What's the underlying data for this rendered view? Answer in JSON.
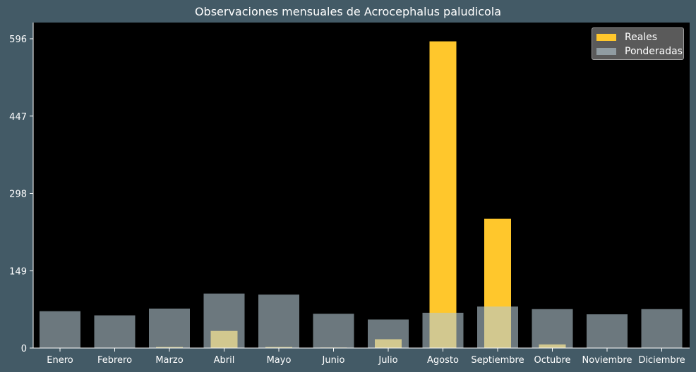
{
  "chart_data": {
    "type": "bar",
    "title": "Observaciones mensuales de Acrocephalus paludicola",
    "categories": [
      "Enero",
      "Febrero",
      "Marzo",
      "Abril",
      "Mayo",
      "Junio",
      "Julio",
      "Agosto",
      "Septiembre",
      "Octubre",
      "Noviembre",
      "Diciembre"
    ],
    "series": [
      {
        "name": "Reales",
        "color": "#ffc72c",
        "values": [
          0,
          0,
          2,
          33,
          2,
          1,
          17,
          591,
          249,
          7,
          0,
          0
        ]
      },
      {
        "name": "Ponderadas",
        "color": "#b4c8d2",
        "values": [
          71,
          63,
          76,
          105,
          103,
          66,
          55,
          68,
          80,
          75,
          65,
          75
        ]
      }
    ],
    "yticks": [
      0,
      149,
      298,
      447,
      596
    ],
    "ylim": [
      0,
      596
    ],
    "legend_position": "top-right",
    "grid": false
  }
}
